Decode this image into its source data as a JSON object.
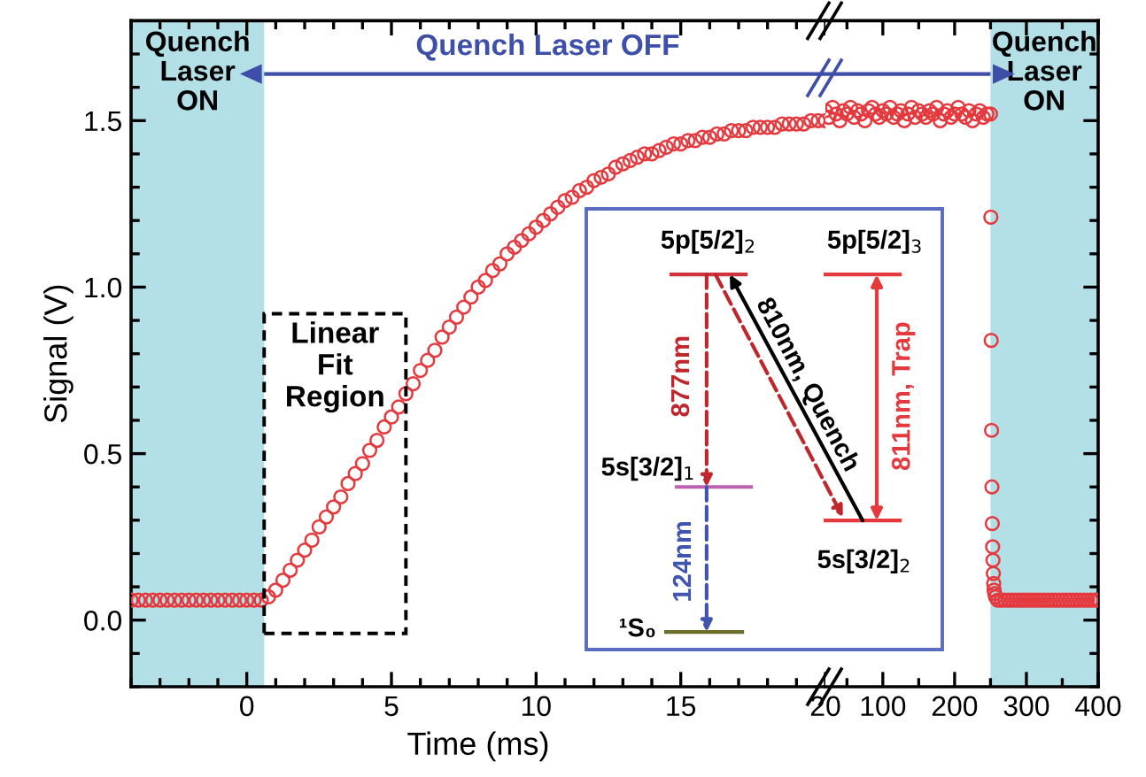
{
  "chart_data": [
    {
      "type": "scatter",
      "xlabel": "Time (ms)",
      "ylabel": "Signal (V)",
      "color": "#e5393e",
      "marker": "circle",
      "series": [
        {
          "type": "line",
          "marker": "none",
          "color": "#3d4fa8",
          "x": [
            0.6,
            20
          ],
          "values": [
            1.64,
            1.64
          ]
        }
      ],
      "x": [
        -4,
        -3.75,
        -3.5,
        -3.25,
        -3,
        -2.75,
        -2.5,
        -2.25,
        -2,
        -1.75,
        -1.5,
        -1.25,
        -1,
        -0.75,
        -0.5,
        -0.25,
        0,
        0.25,
        0.5,
        0.75,
        1,
        1.25,
        1.5,
        1.75,
        2,
        2.25,
        2.5,
        2.75,
        3,
        3.25,
        3.5,
        3.75,
        4,
        4.25,
        4.5,
        4.75,
        5,
        5.25,
        5.5,
        5.75,
        6,
        6.25,
        6.5,
        6.75,
        7,
        7.25,
        7.5,
        7.75,
        8,
        8.25,
        8.5,
        8.75,
        9,
        9.25,
        9.5,
        9.75,
        10,
        10.25,
        10.5,
        10.75,
        11,
        11.25,
        11.5,
        11.75,
        12,
        12.25,
        12.5,
        12.75,
        13,
        13.25,
        13.5,
        13.75,
        14,
        14.25,
        14.5,
        14.75,
        15,
        15.25,
        15.5,
        15.75,
        16,
        16.25,
        16.5,
        16.75,
        17,
        17.25,
        17.5,
        17.75,
        18,
        18.25,
        18.5,
        18.75,
        19,
        19.25,
        19.5,
        19.75,
        20
      ],
      "values": [
        0.06,
        0.06,
        0.06,
        0.06,
        0.06,
        0.06,
        0.06,
        0.06,
        0.06,
        0.06,
        0.06,
        0.06,
        0.06,
        0.06,
        0.06,
        0.06,
        0.06,
        0.06,
        0.06,
        0.07,
        0.09,
        0.12,
        0.15,
        0.18,
        0.21,
        0.24,
        0.28,
        0.31,
        0.34,
        0.37,
        0.41,
        0.44,
        0.47,
        0.51,
        0.54,
        0.58,
        0.61,
        0.64,
        0.68,
        0.71,
        0.75,
        0.78,
        0.81,
        0.85,
        0.88,
        0.91,
        0.94,
        0.97,
        1.0,
        1.02,
        1.05,
        1.07,
        1.1,
        1.12,
        1.14,
        1.16,
        1.18,
        1.2,
        1.22,
        1.24,
        1.26,
        1.27,
        1.29,
        1.3,
        1.32,
        1.33,
        1.34,
        1.36,
        1.37,
        1.38,
        1.39,
        1.4,
        1.4,
        1.41,
        1.42,
        1.43,
        1.43,
        1.44,
        1.44,
        1.45,
        1.45,
        1.46,
        1.46,
        1.47,
        1.47,
        1.47,
        1.48,
        1.48,
        1.48,
        1.48,
        1.49,
        1.49,
        1.49,
        1.49,
        1.5,
        1.5,
        1.5
      ],
      "xlim": [
        -4,
        20
      ],
      "ylim": [
        -0.2,
        1.8
      ],
      "xticks": [
        0,
        5,
        10,
        15,
        20,
        {
          "value": -4,
          "label": null
        },
        {
          "value": -3,
          "label": null
        },
        {
          "value": -2,
          "label": null
        },
        {
          "value": -1,
          "label": null
        },
        {
          "value": 1,
          "label": null
        },
        {
          "value": 2,
          "label": null
        },
        {
          "value": 3,
          "label": null
        },
        {
          "value": 4,
          "label": null
        },
        {
          "value": 6,
          "label": null
        },
        {
          "value": 7,
          "label": null
        },
        {
          "value": 8,
          "label": null
        },
        {
          "value": 9,
          "label": null
        },
        {
          "value": 11,
          "label": null
        },
        {
          "value": 12,
          "label": null
        },
        {
          "value": 13,
          "label": null
        },
        {
          "value": 14,
          "label": null
        },
        {
          "value": 16,
          "label": null
        },
        {
          "value": 17,
          "label": null
        },
        {
          "value": 18,
          "label": null
        },
        {
          "value": 19,
          "label": null
        }
      ],
      "yticks": [
        {
          "value": 0,
          "label": "0.0"
        },
        0.5,
        {
          "value": 1,
          "label": "1.0"
        },
        1.5,
        {
          "value": -0.2,
          "label": null
        },
        {
          "value": -0.1,
          "label": null
        },
        {
          "value": 0.1,
          "label": null
        },
        {
          "value": 0.2,
          "label": null
        },
        {
          "value": 0.3,
          "label": null
        },
        {
          "value": 0.4,
          "label": null
        },
        {
          "value": 0.6,
          "label": null
        },
        {
          "value": 0.7,
          "label": null
        },
        {
          "value": 0.8,
          "label": null
        },
        {
          "value": 0.9,
          "label": null
        },
        {
          "value": 1.1,
          "label": null
        },
        {
          "value": 1.2,
          "label": null
        },
        {
          "value": 1.3,
          "label": null
        },
        {
          "value": 1.4,
          "label": null
        },
        {
          "value": 1.6,
          "label": null
        },
        {
          "value": 1.7,
          "label": null
        }
      ],
      "bands": [
        {
          "axis": "x",
          "from": -4,
          "to": 0.6,
          "label": "Quench Laser ON",
          "color": "#b3e0e6"
        }
      ],
      "annotations": [
        "Linear Fit Region",
        "Quench Laser OFF",
        "5p[5/2]$_{2}$",
        "5p[5/2]$_{3}$",
        "877nm",
        "810nm, Quench",
        "811nm, Trap",
        "5s[3/2]$_{1}$",
        "5s[3/2]$_{2}$",
        "124nm",
        "¹S₀"
      ]
    },
    {
      "type": "scatter",
      "color": "#e5393e",
      "marker": "circle",
      "tick_labels": "x",
      "series": [
        {
          "type": "line",
          "marker": "none",
          "color": "#3d4fa8",
          "x": [
            20,
            250
          ],
          "values": [
            1.64,
            1.64
          ]
        }
      ],
      "x": [
        20,
        25,
        30,
        35,
        40,
        45,
        50,
        55,
        60,
        65,
        70,
        75,
        80,
        85,
        90,
        95,
        100,
        105,
        110,
        115,
        120,
        125,
        130,
        135,
        140,
        145,
        150,
        155,
        160,
        165,
        170,
        175,
        180,
        185,
        190,
        195,
        200,
        205,
        210,
        215,
        220,
        225,
        230,
        235,
        240,
        245,
        250,
        250.5,
        251,
        251.5,
        252,
        252.5,
        253,
        253.5,
        254,
        254.5,
        255,
        256,
        257,
        260,
        265,
        270,
        275,
        280,
        285,
        290,
        295,
        300,
        305,
        310,
        315,
        320,
        325,
        330,
        335,
        340,
        345,
        350,
        355,
        360,
        365,
        370,
        375,
        380,
        385,
        390,
        395,
        400
      ],
      "values": [
        1.53,
        1.51,
        1.54,
        1.52,
        1.5,
        1.53,
        1.52,
        1.54,
        1.51,
        1.53,
        1.52,
        1.5,
        1.53,
        1.54,
        1.52,
        1.51,
        1.53,
        1.52,
        1.54,
        1.51,
        1.52,
        1.53,
        1.5,
        1.52,
        1.54,
        1.51,
        1.53,
        1.52,
        1.51,
        1.53,
        1.52,
        1.54,
        1.5,
        1.52,
        1.53,
        1.51,
        1.52,
        1.54,
        1.52,
        1.51,
        1.53,
        1.5,
        1.52,
        1.53,
        1.51,
        1.52,
        1.52,
        1.21,
        0.84,
        0.57,
        0.4,
        0.29,
        0.22,
        0.18,
        0.14,
        0.11,
        0.09,
        0.08,
        0.07,
        0.06,
        0.06,
        0.06,
        0.06,
        0.06,
        0.06,
        0.06,
        0.06,
        0.06,
        0.06,
        0.06,
        0.06,
        0.06,
        0.06,
        0.06,
        0.06,
        0.06,
        0.06,
        0.06,
        0.06,
        0.06,
        0.06,
        0.06,
        0.06,
        0.06,
        0.06,
        0.06,
        0.06,
        0.06
      ],
      "xlim": [
        20,
        400
      ],
      "ylim": [
        -0.2,
        1.8
      ],
      "xticks": [
        100,
        200,
        300,
        400,
        {
          "value": 50,
          "label": null
        },
        {
          "value": 150,
          "label": null
        },
        {
          "value": 250,
          "label": null
        },
        {
          "value": 350,
          "label": null
        }
      ],
      "yticks": [
        0,
        0.5,
        1,
        1.5,
        {
          "value": -0.2,
          "label": null
        },
        {
          "value": -0.1,
          "label": null
        },
        {
          "value": 0.1,
          "label": null
        },
        {
          "value": 0.2,
          "label": null
        },
        {
          "value": 0.3,
          "label": null
        },
        {
          "value": 0.4,
          "label": null
        },
        {
          "value": 0.6,
          "label": null
        },
        {
          "value": 0.7,
          "label": null
        },
        {
          "value": 0.8,
          "label": null
        },
        {
          "value": 0.9,
          "label": null
        },
        {
          "value": 1.1,
          "label": null
        },
        {
          "value": 1.2,
          "label": null
        },
        {
          "value": 1.3,
          "label": null
        },
        {
          "value": 1.4,
          "label": null
        },
        {
          "value": 1.6,
          "label": null
        },
        {
          "value": 1.7,
          "label": null
        }
      ],
      "bands": [
        {
          "axis": "x",
          "from": 250,
          "to": 400,
          "label": "Quench Laser ON",
          "color": "#b3e0e6"
        }
      ]
    }
  ]
}
